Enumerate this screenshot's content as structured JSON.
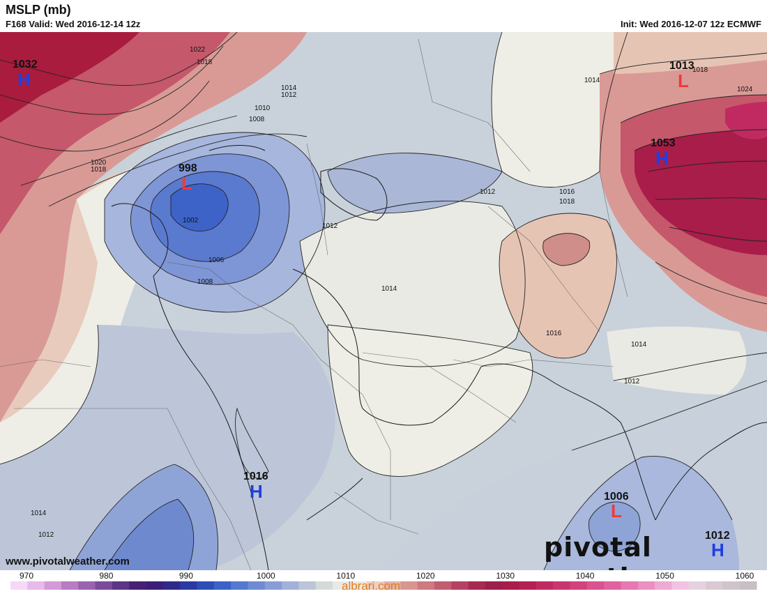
{
  "header": {
    "title": "MSLP (mb)",
    "valid": "F168 Valid: Wed 2016-12-14 12z",
    "init": "Init: Wed 2016-12-07 12z ECMWF"
  },
  "pressure_centers": [
    {
      "kind": "H",
      "value": "1032"
    },
    {
      "kind": "L",
      "value": "998"
    },
    {
      "kind": "L",
      "value": "1013"
    },
    {
      "kind": "H",
      "value": "1053"
    },
    {
      "kind": "H",
      "value": "1016"
    },
    {
      "kind": "L",
      "value": "1006"
    },
    {
      "kind": "H",
      "value": "1012"
    }
  ],
  "contour_labels": [
    "1022",
    "1018",
    "1014",
    "1012",
    "1010",
    "1008",
    "1020",
    "1018",
    "1002",
    "1006",
    "1008",
    "1012",
    "1014",
    "1012",
    "1016",
    "1018",
    "1014",
    "1016",
    "1014",
    "1012",
    "1018",
    "1024",
    "1014",
    "1012"
  ],
  "colors": {
    "low_deep": "#3d63c9",
    "low_mid": "#6e8ad0",
    "low_light": "#aebcd8",
    "neutral": "#c7d0d8",
    "neutral_light": "#eeeee6",
    "high_light": "#e6c4b4",
    "high_mid": "#d7868a",
    "high_deep": "#b01a3a",
    "high_symbol": "#1f3fe0",
    "low_symbol": "#ee3a3a"
  },
  "legend": {
    "ticks": [
      "970",
      "980",
      "990",
      "1000",
      "1010",
      "1020",
      "1030",
      "1040",
      "1050",
      "1060"
    ],
    "swatches": [
      "#f6d8f6",
      "#e8b9ec",
      "#d29ad8",
      "#b77cc3",
      "#9a62b0",
      "#7c4b9c",
      "#5e3587",
      "#452273",
      "#3a1f78",
      "#2f2a8a",
      "#2b3aa0",
      "#2f4db7",
      "#3b62c6",
      "#5479cf",
      "#6e8ad0",
      "#889dd6",
      "#a3b1d9",
      "#bcc4d7",
      "#d4dad8",
      "#e9eae4",
      "#f1e7df",
      "#ecd0c3",
      "#e3b4a7",
      "#d8968f",
      "#cd7a80",
      "#c15e70",
      "#b44362",
      "#a82a52",
      "#9d1f4d",
      "#a81d4a",
      "#b52052",
      "#c02a60",
      "#c9366e",
      "#d2437d",
      "#da528e",
      "#e063a0",
      "#e678b2",
      "#ea90c2",
      "#eeaad2",
      "#f1c3e0",
      "#e6d2de",
      "#dac9d2",
      "#cfc4ca",
      "#c6c0c4"
    ]
  },
  "watermark": "www.pivotalweather.com",
  "brand": "pivotal weather",
  "credit": "albrari.com"
}
